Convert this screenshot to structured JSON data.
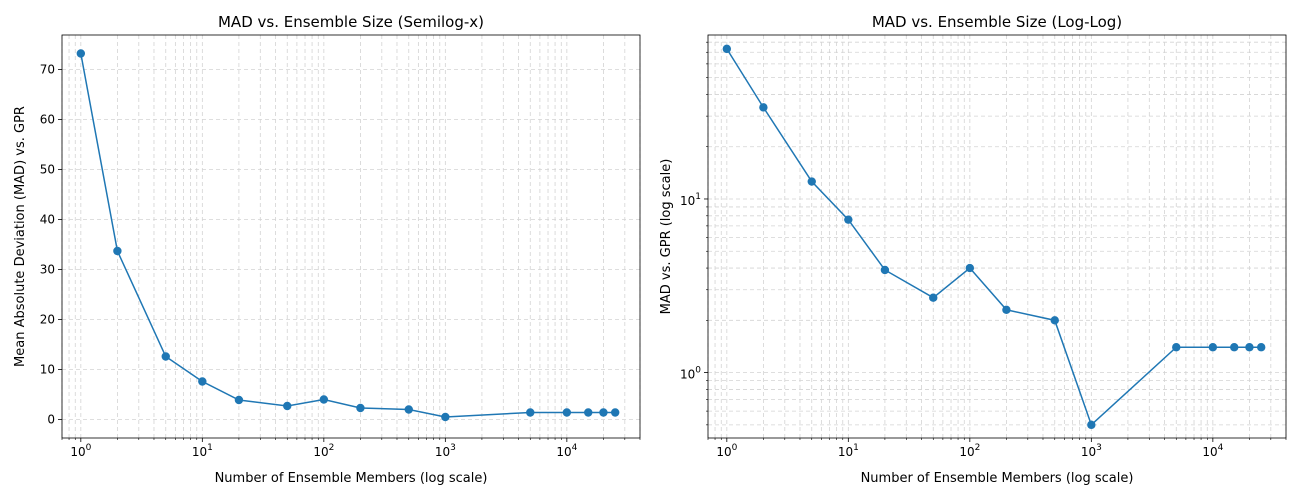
{
  "chart_data": [
    {
      "type": "line",
      "title": "MAD vs. Ensemble Size (Semilog-x)",
      "xlabel": "Number of Ensemble Members (log scale)",
      "ylabel": "Mean Absolute Deviation (MAD) vs. GPR",
      "xscale": "log",
      "yscale": "linear",
      "xlim": [
        0.7,
        40000
      ],
      "ylim": [
        -3.7,
        76.9
      ],
      "x_ticks": [
        {
          "value": 1,
          "label": "10",
          "exp": "0"
        },
        {
          "value": 10,
          "label": "10",
          "exp": "1"
        },
        {
          "value": 100,
          "label": "10",
          "exp": "2"
        },
        {
          "value": 1000,
          "label": "10",
          "exp": "3"
        },
        {
          "value": 10000,
          "label": "10",
          "exp": "4"
        }
      ],
      "y_ticks": [
        {
          "value": 0,
          "label": "0"
        },
        {
          "value": 10,
          "label": "10"
        },
        {
          "value": 20,
          "label": "20"
        },
        {
          "value": 30,
          "label": "30"
        },
        {
          "value": 40,
          "label": "40"
        },
        {
          "value": 50,
          "label": "50"
        },
        {
          "value": 60,
          "label": "60"
        },
        {
          "value": 70,
          "label": "70"
        }
      ],
      "grid": true,
      "color": "#1f77b4",
      "x": [
        1,
        2,
        5,
        10,
        20,
        50,
        100,
        200,
        500,
        1000,
        5000,
        10000,
        15000,
        20000,
        25000
      ],
      "y": [
        73.2,
        33.7,
        12.6,
        7.6,
        3.9,
        2.7,
        4.0,
        2.3,
        2.0,
        0.5,
        1.4,
        1.4,
        1.4,
        1.4,
        1.4
      ]
    },
    {
      "type": "line",
      "title": "MAD vs. Ensemble Size (Log-Log)",
      "xlabel": "Number of Ensemble Members (log scale)",
      "ylabel": "MAD vs. GPR (log scale)",
      "xscale": "log",
      "yscale": "log",
      "xlim": [
        0.7,
        40000
      ],
      "ylim": [
        0.42,
        88
      ],
      "x_ticks": [
        {
          "value": 1,
          "label": "10",
          "exp": "0"
        },
        {
          "value": 10,
          "label": "10",
          "exp": "1"
        },
        {
          "value": 100,
          "label": "10",
          "exp": "2"
        },
        {
          "value": 1000,
          "label": "10",
          "exp": "3"
        },
        {
          "value": 10000,
          "label": "10",
          "exp": "4"
        }
      ],
      "y_ticks": [
        {
          "value": 1,
          "label": "10",
          "exp": "0"
        },
        {
          "value": 10,
          "label": "10",
          "exp": "1"
        }
      ],
      "grid": true,
      "color": "#1f77b4",
      "x": [
        1,
        2,
        5,
        10,
        20,
        50,
        100,
        200,
        500,
        1000,
        5000,
        10000,
        15000,
        20000,
        25000
      ],
      "y": [
        73.2,
        33.7,
        12.6,
        7.6,
        3.9,
        2.7,
        4.0,
        2.3,
        2.0,
        0.5,
        1.4,
        1.4,
        1.4,
        1.4,
        1.4
      ]
    }
  ]
}
